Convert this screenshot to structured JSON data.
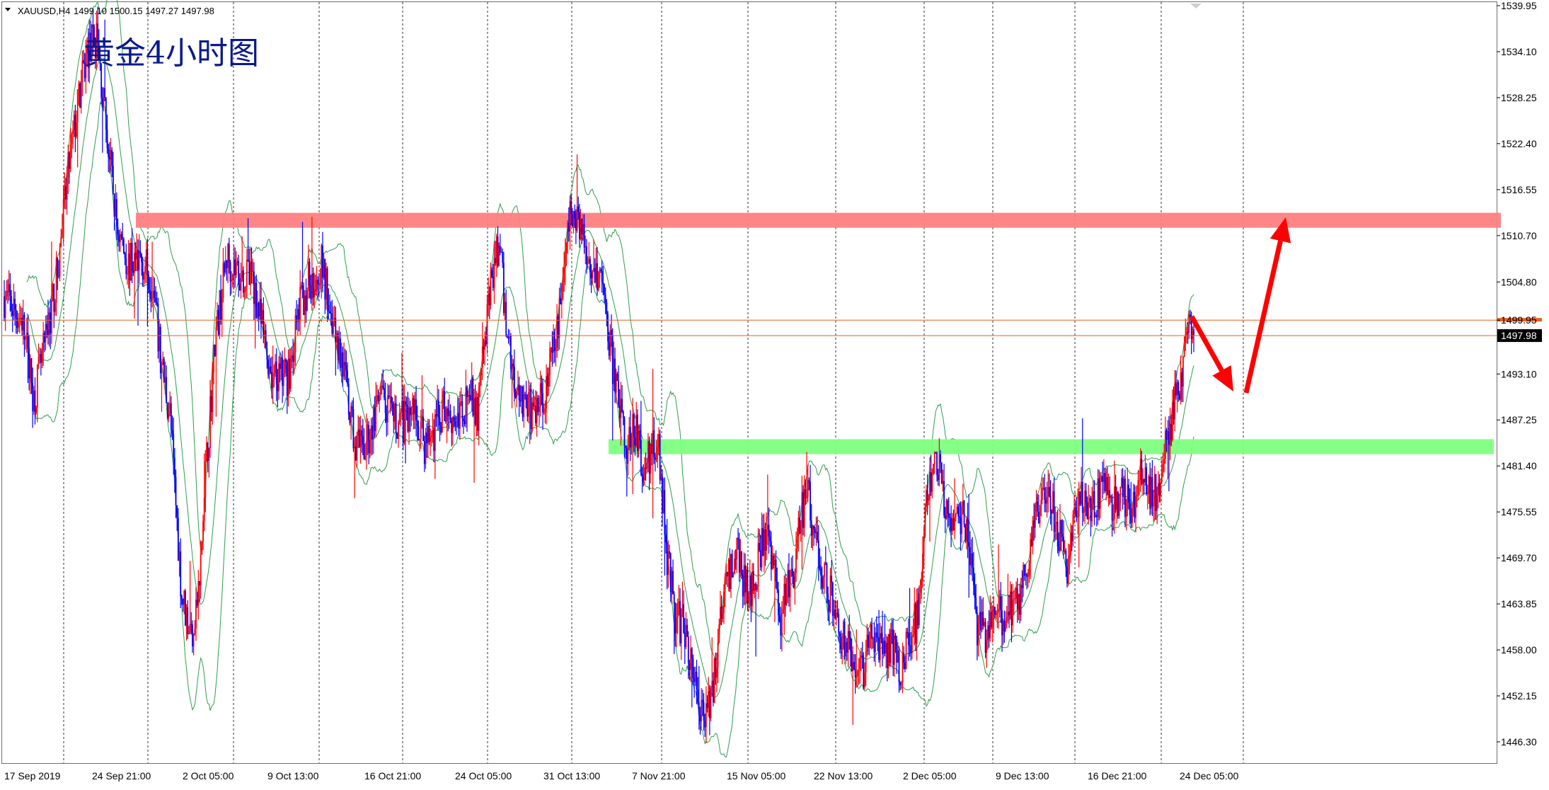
{
  "chart_data": {
    "type": "candlestick",
    "symbol_line": {
      "symbol": "XAUUSD,H4",
      "ohlc_text": "1499.10 1500.15 1497.27 1497.98"
    },
    "annotation": "黄金4小时图",
    "y_axis": {
      "ticks": [
        "1539.95",
        "1534.10",
        "1528.25",
        "1522.40",
        "1516.55",
        "1510.70",
        "1504.80",
        "1499.95",
        "1493.10",
        "1487.25",
        "1481.40",
        "1475.55",
        "1469.70",
        "1463.85",
        "1458.00",
        "1452.15",
        "1446.30"
      ],
      "ylim": [
        1443.0,
        1540.3
      ]
    },
    "x_axis": {
      "labels": [
        "17 Sep 2019",
        "24 Sep 21:00",
        "2 Oct 05:00",
        "9 Oct 13:00",
        "16 Oct 21:00",
        "24 Oct 05:00",
        "31 Oct 13:00",
        "7 Nov 21:00",
        "15 Nov 05:00",
        "22 Nov 13:00",
        "2 Dec 05:00",
        "9 Dec 13:00",
        "16 Dec 21:00",
        "24 Dec 05:00"
      ],
      "grid": "vertical-dotted"
    },
    "current_price": {
      "label": "1497.98",
      "value": 1497.98,
      "hidden_level": 1499.95
    },
    "zones": [
      {
        "type": "resistance",
        "color": "#ff7f7f",
        "from": 1511.7,
        "to": 1513.6
      },
      {
        "type": "support",
        "color": "#80ff80",
        "from": 1482.9,
        "to": 1484.8
      }
    ],
    "price_path": [
      [
        0,
        1503
      ],
      [
        15,
        1500
      ],
      [
        25,
        1490
      ],
      [
        35,
        1497
      ],
      [
        45,
        1506
      ],
      [
        55,
        1520
      ],
      [
        62,
        1527
      ],
      [
        70,
        1534
      ],
      [
        78,
        1536
      ],
      [
        85,
        1526
      ],
      [
        95,
        1512
      ],
      [
        105,
        1507
      ],
      [
        115,
        1508
      ],
      [
        125,
        1505
      ],
      [
        132,
        1495
      ],
      [
        140,
        1488
      ],
      [
        150,
        1465
      ],
      [
        158,
        1460
      ],
      [
        165,
        1466
      ],
      [
        170,
        1480
      ],
      [
        178,
        1497
      ],
      [
        188,
        1508
      ],
      [
        198,
        1506
      ],
      [
        210,
        1505
      ],
      [
        220,
        1497
      ],
      [
        228,
        1492
      ],
      [
        240,
        1493
      ],
      [
        250,
        1502
      ],
      [
        258,
        1505
      ],
      [
        268,
        1507
      ],
      [
        278,
        1500
      ],
      [
        286,
        1494
      ],
      [
        295,
        1485
      ],
      [
        302,
        1483
      ],
      [
        310,
        1486
      ],
      [
        318,
        1490
      ],
      [
        328,
        1487
      ],
      [
        338,
        1487
      ],
      [
        346,
        1489
      ],
      [
        355,
        1484
      ],
      [
        363,
        1486
      ],
      [
        372,
        1489
      ],
      [
        383,
        1487
      ],
      [
        393,
        1491
      ],
      [
        400,
        1488
      ],
      [
        410,
        1503
      ],
      [
        418,
        1510
      ],
      [
        423,
        1501
      ],
      [
        430,
        1493
      ],
      [
        438,
        1490
      ],
      [
        446,
        1488
      ],
      [
        455,
        1490
      ],
      [
        466,
        1497
      ],
      [
        473,
        1507
      ],
      [
        478,
        1513
      ],
      [
        485,
        1513
      ],
      [
        494,
        1508
      ],
      [
        503,
        1506
      ],
      [
        510,
        1499
      ],
      [
        518,
        1490
      ],
      [
        525,
        1484
      ],
      [
        534,
        1486
      ],
      [
        540,
        1480
      ],
      [
        546,
        1483
      ],
      [
        552,
        1485
      ],
      [
        560,
        1470
      ],
      [
        567,
        1462
      ],
      [
        575,
        1461
      ],
      [
        582,
        1455
      ],
      [
        590,
        1450
      ],
      [
        598,
        1452
      ],
      [
        605,
        1462
      ],
      [
        612,
        1468
      ],
      [
        620,
        1470
      ],
      [
        628,
        1465
      ],
      [
        635,
        1468
      ],
      [
        642,
        1472
      ],
      [
        650,
        1470
      ],
      [
        656,
        1460
      ],
      [
        660,
        1466
      ],
      [
        667,
        1467
      ],
      [
        674,
        1476
      ],
      [
        680,
        1477
      ],
      [
        688,
        1470
      ],
      [
        694,
        1467
      ],
      [
        702,
        1463
      ],
      [
        710,
        1459
      ],
      [
        718,
        1457
      ],
      [
        726,
        1456
      ],
      [
        734,
        1460
      ],
      [
        742,
        1457
      ],
      [
        750,
        1458
      ],
      [
        758,
        1456
      ],
      [
        765,
        1460
      ],
      [
        772,
        1462
      ],
      [
        780,
        1478
      ],
      [
        788,
        1482
      ],
      [
        795,
        1477
      ],
      [
        803,
        1475
      ],
      [
        810,
        1475
      ],
      [
        818,
        1470
      ],
      [
        822,
        1461
      ],
      [
        830,
        1460
      ],
      [
        838,
        1462
      ],
      [
        848,
        1463
      ],
      [
        858,
        1465
      ],
      [
        866,
        1470
      ],
      [
        874,
        1476
      ],
      [
        882,
        1480
      ],
      [
        890,
        1473
      ],
      [
        898,
        1469
      ],
      [
        906,
        1475
      ],
      [
        912,
        1478
      ],
      [
        920,
        1476
      ],
      [
        928,
        1479
      ],
      [
        936,
        1476
      ],
      [
        944,
        1478
      ],
      [
        952,
        1476
      ],
      [
        960,
        1480
      ],
      [
        968,
        1477
      ],
      [
        975,
        1479
      ],
      [
        980,
        1484
      ],
      [
        985,
        1486
      ],
      [
        990,
        1490
      ],
      [
        995,
        1494
      ],
      [
        1000,
        1499
      ],
      [
        1005,
        1499
      ]
    ],
    "indicator": "bollinger_bands",
    "arrows": [
      {
        "direction": "down",
        "color": "#ff0000"
      },
      {
        "direction": "up",
        "color": "#ff0000"
      }
    ],
    "colors": {
      "bull": "#ff0000",
      "bear": "#0000ff",
      "band": "#2e9e4e",
      "price_line": "#e8601c"
    }
  }
}
